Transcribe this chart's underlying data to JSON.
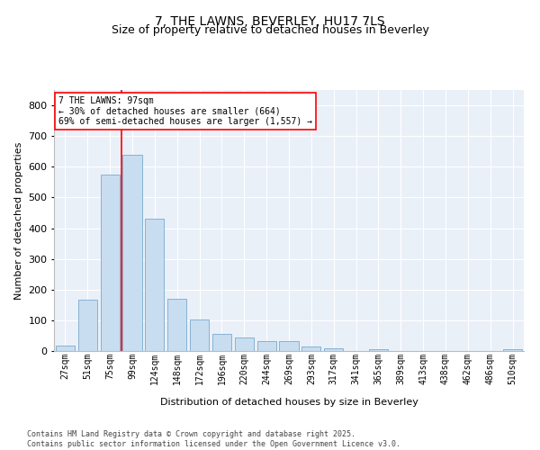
{
  "title": "7, THE LAWNS, BEVERLEY, HU17 7LS",
  "subtitle": "Size of property relative to detached houses in Beverley",
  "xlabel": "Distribution of detached houses by size in Beverley",
  "ylabel": "Number of detached properties",
  "bar_color": "#c8ddf0",
  "bar_edge_color": "#7aaacf",
  "background_color": "#eaf0f8",
  "grid_color": "#ffffff",
  "categories": [
    "27sqm",
    "51sqm",
    "75sqm",
    "99sqm",
    "124sqm",
    "148sqm",
    "172sqm",
    "196sqm",
    "220sqm",
    "244sqm",
    "269sqm",
    "293sqm",
    "317sqm",
    "341sqm",
    "365sqm",
    "389sqm",
    "413sqm",
    "438sqm",
    "462sqm",
    "486sqm",
    "510sqm"
  ],
  "values": [
    18,
    168,
    575,
    640,
    430,
    170,
    103,
    57,
    44,
    32,
    32,
    14,
    9,
    0,
    5,
    0,
    0,
    0,
    0,
    0,
    7
  ],
  "ylim": [
    0,
    850
  ],
  "yticks": [
    0,
    100,
    200,
    300,
    400,
    500,
    600,
    700,
    800
  ],
  "property_bin_index": 3,
  "annotation_title": "7 THE LAWNS: 97sqm",
  "annotation_line1": "← 30% of detached houses are smaller (664)",
  "annotation_line2": "69% of semi-detached houses are larger (1,557) →",
  "footer_line1": "Contains HM Land Registry data © Crown copyright and database right 2025.",
  "footer_line2": "Contains public sector information licensed under the Open Government Licence v3.0.",
  "title_fontsize": 10,
  "subtitle_fontsize": 9,
  "xlabel_fontsize": 8,
  "ylabel_fontsize": 8,
  "tick_fontsize": 7,
  "annotation_fontsize": 7,
  "footer_fontsize": 6
}
